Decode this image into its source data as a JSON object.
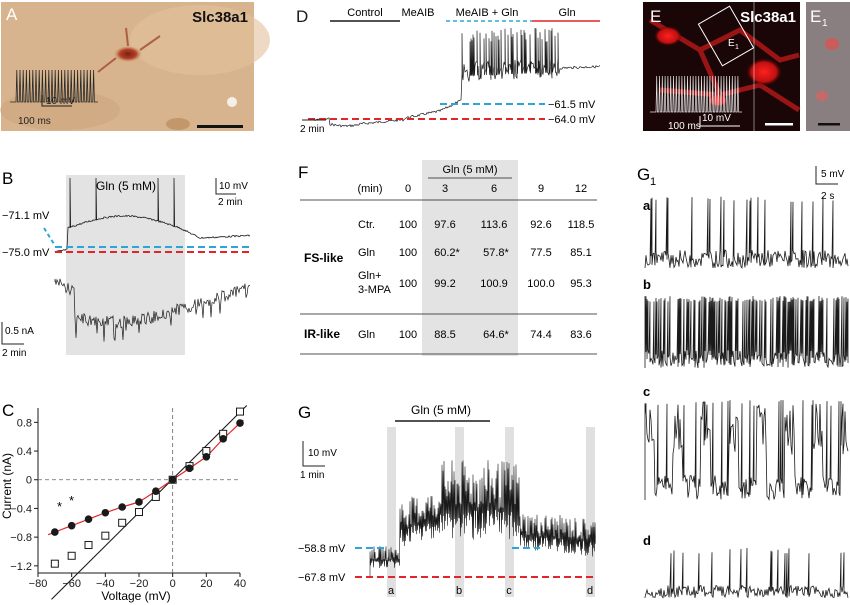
{
  "panel_letters": {
    "A": "A",
    "B": "B",
    "C": "C",
    "D": "D",
    "E": "E",
    "E1": "E",
    "E1sub": "1",
    "F": "F",
    "G": "G",
    "G1": "G",
    "G1sub": "1"
  },
  "panelA": {
    "gene": "Slc38a1",
    "scale_v": "10 mV",
    "scale_t": "100 ms"
  },
  "panelE": {
    "gene": "Slc38a1",
    "inset_label": "E",
    "inset_sub": "1",
    "scale_v": "10 mV",
    "scale_t": "100 ms"
  },
  "panelD": {
    "conditions": [
      "Control",
      "MeAIB",
      "MeAIB + Gln",
      "Gln"
    ],
    "level_high": "−61.5 mV",
    "level_low": "−64.0 mV",
    "scale_t": "2 min",
    "colors": {
      "blue": "#2aa7d8",
      "red": "#e0262b",
      "gln_bar": "#e0262b"
    }
  },
  "panelB": {
    "gln_label": "Gln (5 mM)",
    "v_upper": "−71.1 mV",
    "v_lower": "−75.0 mV",
    "scale_v": "10 mV",
    "scale_t_top": "2 min",
    "scale_i": "0.5 nA",
    "scale_t_bottom": "2 min"
  },
  "panelF": {
    "gln_header": "Gln (5 mM)",
    "header": [
      "(min)",
      "0",
      "3",
      "6",
      "9",
      "12"
    ],
    "groups": [
      {
        "name": "FS-like",
        "rows": [
          {
            "cond": "Ctr.",
            "vals": [
              "100",
              "97.6",
              "113.6",
              "92.6",
              "118.5"
            ]
          },
          {
            "cond": "Gln",
            "vals": [
              "100",
              "60.2*",
              "57.8*",
              "77.5",
              "85.1"
            ]
          },
          {
            "cond": "Gln+",
            "cond2": "3-MPA",
            "vals": [
              "100",
              "99.2",
              "100.9",
              "100.0",
              "95.3"
            ]
          }
        ]
      },
      {
        "name": "IR-like",
        "rows": [
          {
            "cond": "Gln",
            "vals": [
              "100",
              "88.5",
              "64.6*",
              "74.4",
              "83.6"
            ]
          }
        ]
      }
    ]
  },
  "panelG": {
    "gln_label": "Gln (5 mM)",
    "v_upper": "−58.8 mV",
    "v_lower": "−67.8 mV",
    "scale_v": "10 mV",
    "scale_t": "1 min",
    "markers": [
      "a",
      "b",
      "c",
      "d"
    ]
  },
  "panelG1": {
    "scale_v": "5 mV",
    "scale_t": "2 s",
    "traces": [
      "a",
      "b",
      "c",
      "d"
    ]
  },
  "chart_data": {
    "type": "scatter",
    "xlabel": "Voltage (mV)",
    "ylabel": "Current (nA)",
    "xlim": [
      -80,
      40
    ],
    "ylim": [
      -1.3,
      1.0
    ],
    "x_ticks": [
      "−80",
      "−60",
      "−40",
      "−20",
      "0",
      "20",
      "40"
    ],
    "y_ticks": [
      "−1.2",
      "−0.8",
      "−0.4",
      "0",
      "0.4",
      "0.8"
    ],
    "grid": false,
    "annotations": [
      "*",
      "*"
    ],
    "series": [
      {
        "marker": "open-square",
        "color": "#1a1a1a",
        "x": [
          -70,
          -60,
          -50,
          -40,
          -30,
          -20,
          -10,
          0,
          10,
          20,
          30,
          40
        ],
        "y": [
          -1.17,
          -1.06,
          -0.91,
          -0.78,
          -0.6,
          -0.45,
          -0.24,
          0.0,
          0.19,
          0.4,
          0.64,
          0.95
        ]
      },
      {
        "marker": "filled-circle",
        "color": "#1a1a1a",
        "x": [
          -70,
          -60,
          -50,
          -40,
          -30,
          -20,
          -10,
          0,
          10,
          20,
          30,
          40
        ],
        "y": [
          -0.73,
          -0.64,
          -0.55,
          -0.46,
          -0.38,
          -0.31,
          -0.16,
          0.0,
          0.16,
          0.32,
          0.57,
          0.79
        ]
      }
    ],
    "fit_black": {
      "slope": 0.0233,
      "intercept": 0.01
    },
    "fit_red": {
      "color": "#e0262b"
    }
  }
}
